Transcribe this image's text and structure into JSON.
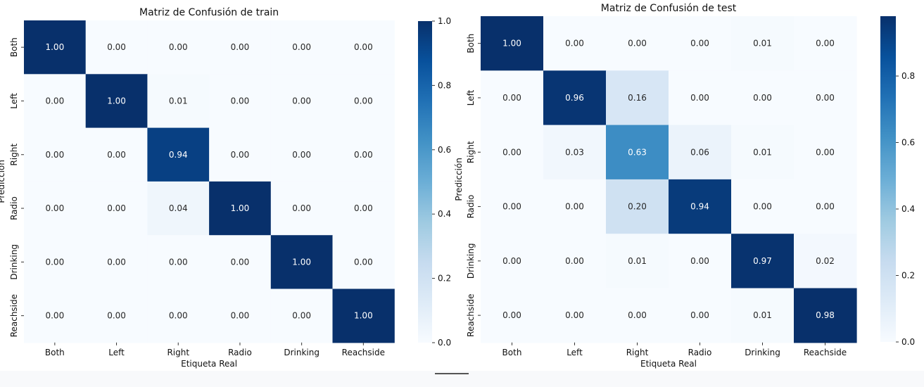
{
  "chart_data": [
    {
      "type": "heatmap",
      "title": "Matriz de Confusión de train",
      "xlabel": "Etiqueta Real",
      "ylabel": "Predicción",
      "x_categories": [
        "Both",
        "Left",
        "Right",
        "Radio",
        "Drinking",
        "Reachside"
      ],
      "y_categories": [
        "Both",
        "Left",
        "Right",
        "Radio",
        "Drinking",
        "Reachside"
      ],
      "values": [
        [
          1.0,
          0.0,
          0.0,
          0.0,
          0.0,
          0.0
        ],
        [
          0.0,
          1.0,
          0.01,
          0.0,
          0.0,
          0.0
        ],
        [
          0.0,
          0.0,
          0.94,
          0.0,
          0.0,
          0.0
        ],
        [
          0.0,
          0.0,
          0.04,
          1.0,
          0.0,
          0.0
        ],
        [
          0.0,
          0.0,
          0.0,
          0.0,
          1.0,
          0.0
        ],
        [
          0.0,
          0.0,
          0.0,
          0.0,
          0.0,
          1.0
        ]
      ],
      "colormap": "Blues",
      "colorbar": {
        "range": [
          0,
          1.0
        ],
        "ticks": [
          "0.0",
          "0.2",
          "0.4",
          "0.6",
          "0.8",
          "1.0"
        ]
      }
    },
    {
      "type": "heatmap",
      "title": "Matriz de Confusión de test",
      "xlabel": "Etiqueta Real",
      "ylabel": "Predicción",
      "x_categories": [
        "Both",
        "Left",
        "Right",
        "Radio",
        "Drinking",
        "Reachside"
      ],
      "y_categories": [
        "Both",
        "Left",
        "Right",
        "Radio",
        "Drinking",
        "Reachside"
      ],
      "values": [
        [
          1.0,
          0.0,
          0.0,
          0.0,
          0.01,
          0.0
        ],
        [
          0.0,
          0.96,
          0.16,
          0.0,
          0.0,
          0.0
        ],
        [
          0.0,
          0.03,
          0.63,
          0.06,
          0.01,
          0.0
        ],
        [
          0.0,
          0.0,
          0.2,
          0.94,
          0.0,
          0.0
        ],
        [
          0.0,
          0.0,
          0.01,
          0.0,
          0.97,
          0.02
        ],
        [
          0.0,
          0.0,
          0.0,
          0.0,
          0.01,
          0.98
        ]
      ],
      "colormap": "Blues",
      "colorbar": {
        "range": [
          0,
          1.0
        ],
        "ticks": [
          "0.0",
          "0.2",
          "0.4",
          "0.6",
          "0.8"
        ]
      }
    }
  ]
}
